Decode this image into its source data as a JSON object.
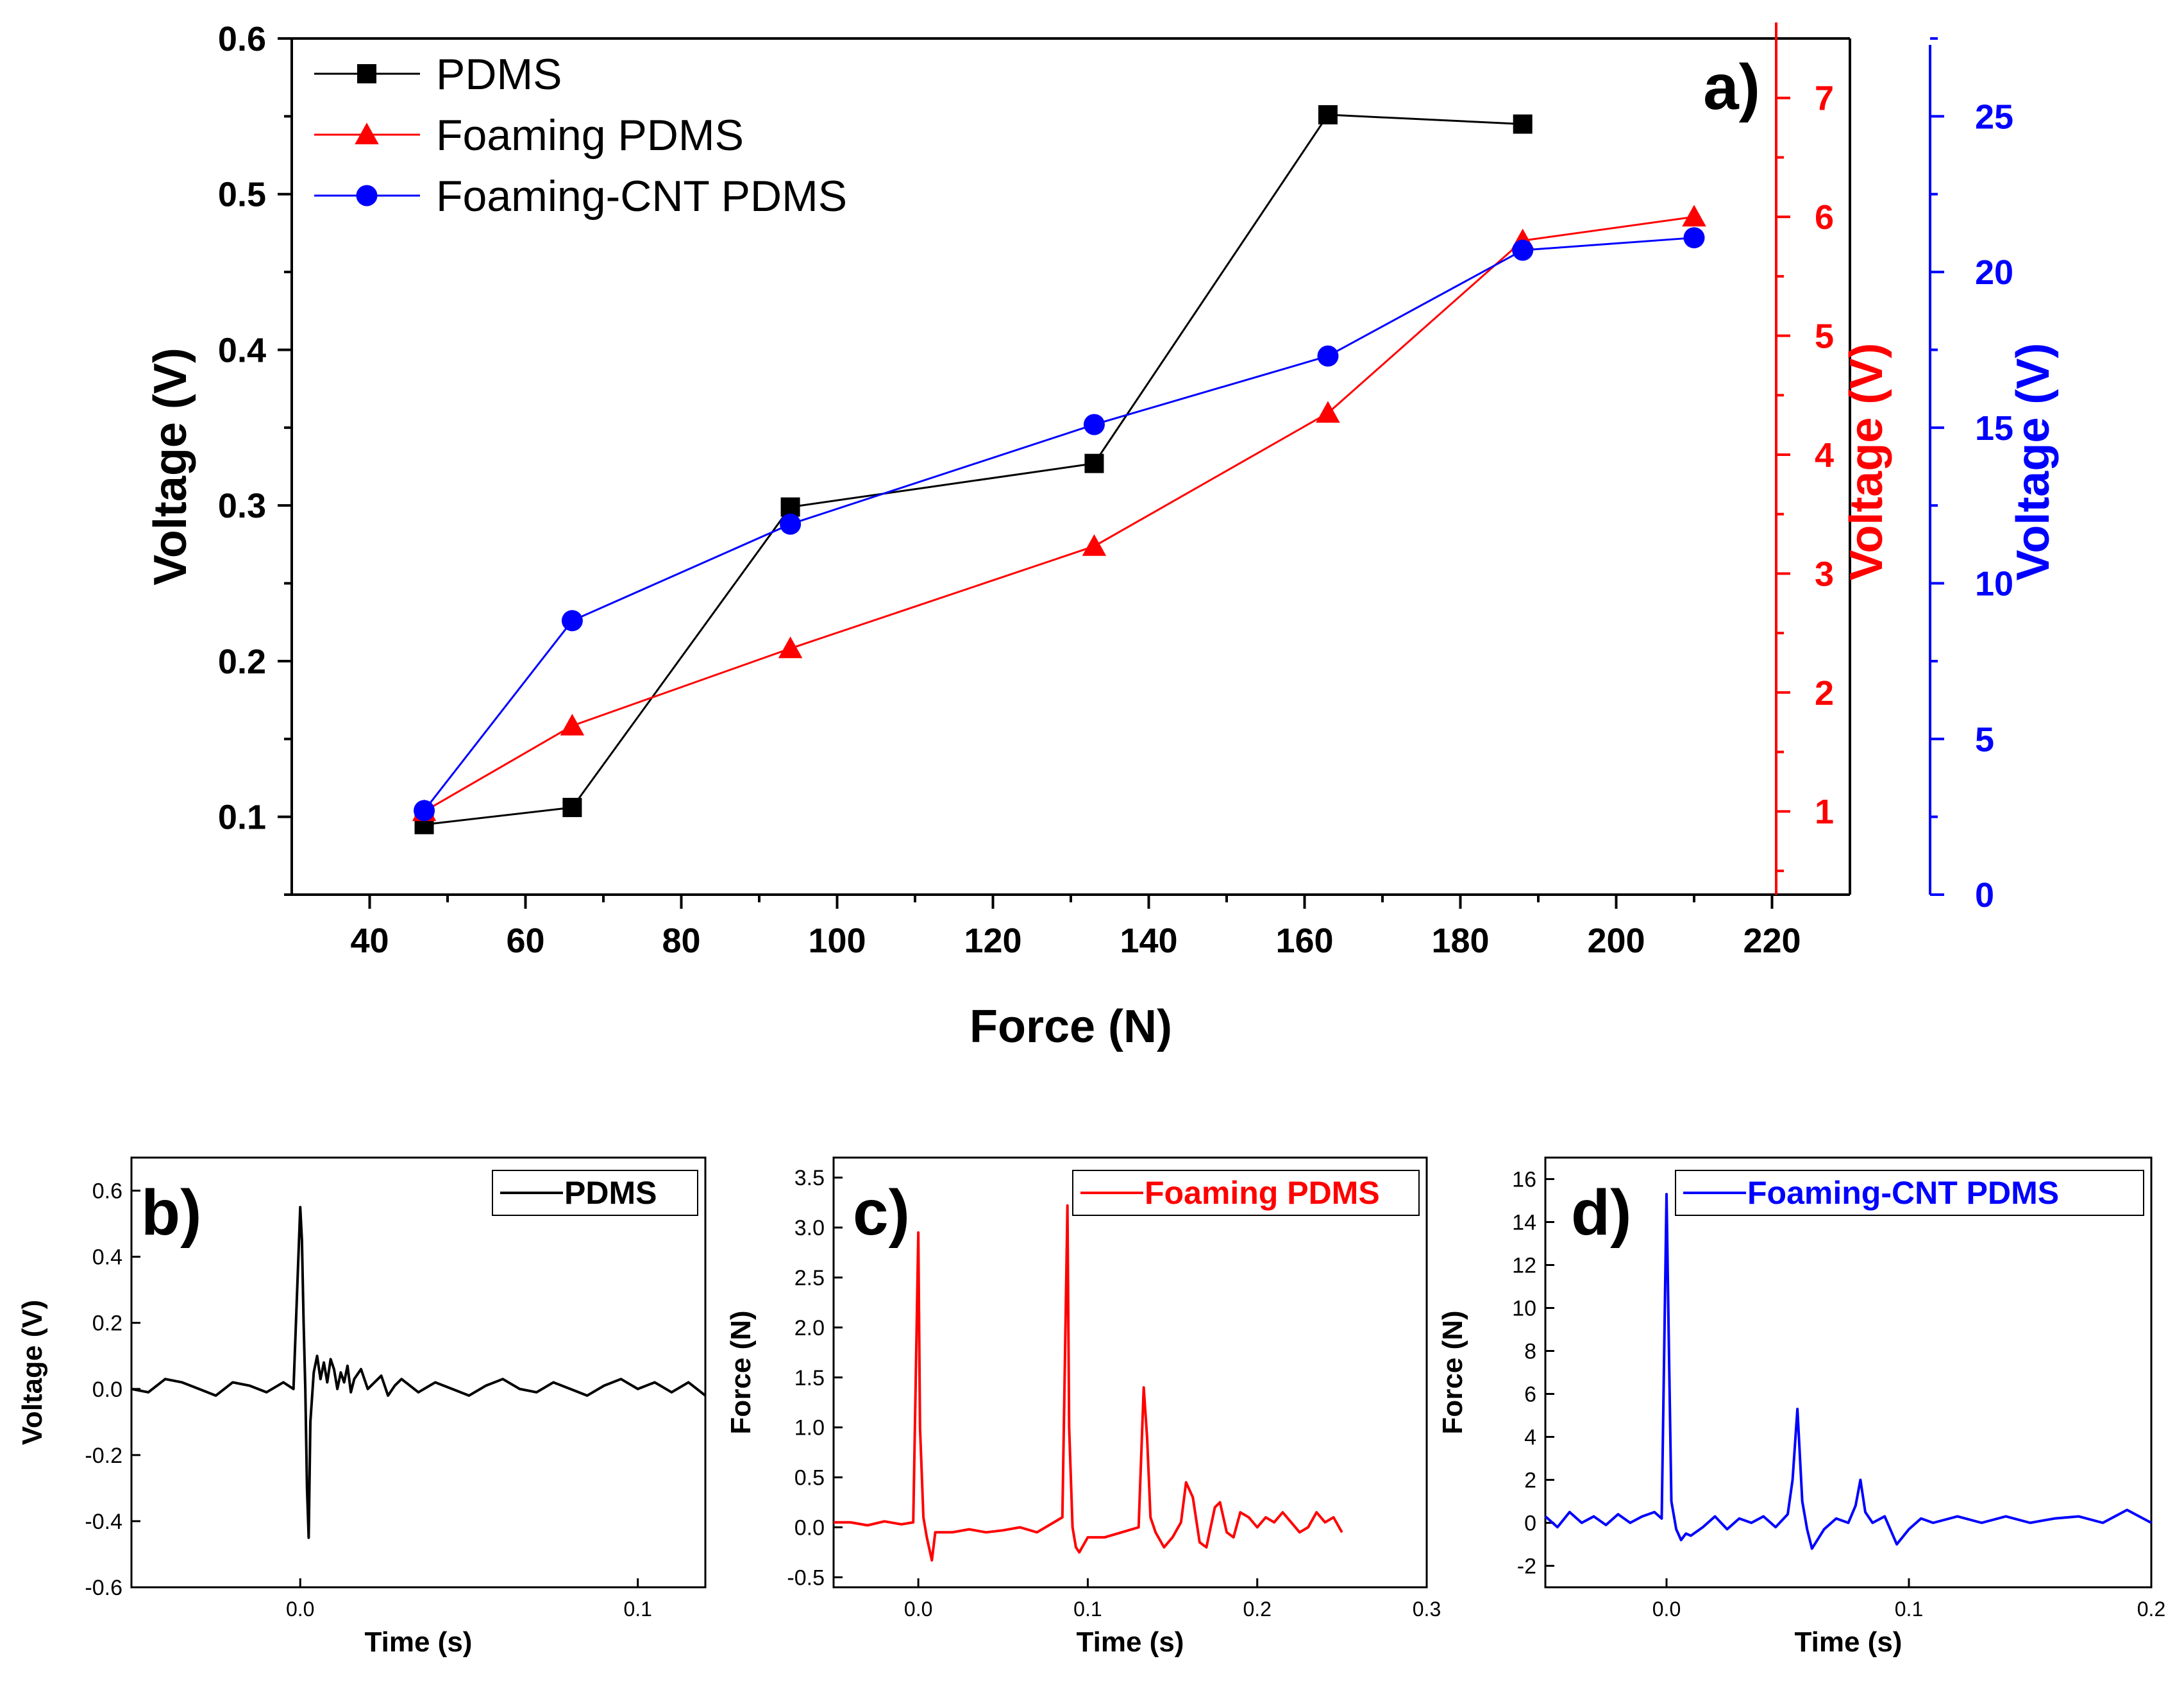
{
  "colors": {
    "pdms": "#000000",
    "foaming": "#ff0000",
    "cnt": "#0000ff",
    "axis": "#000000"
  },
  "chart_data": [
    {
      "panel": "a)",
      "type": "line",
      "xlabel": "Force (N)",
      "xlim": [
        30,
        230
      ],
      "xticks": [
        40,
        60,
        80,
        100,
        120,
        140,
        160,
        180,
        200,
        220
      ],
      "axes": {
        "left": {
          "label": "Voltage (V)",
          "lim": [
            0.05,
            0.6
          ],
          "ticks": [
            0.1,
            0.2,
            0.3,
            0.4,
            0.5,
            0.6
          ],
          "tick_labels": [
            "0.1",
            "0.2",
            "0.3",
            "0.4",
            "0.5",
            "0.6"
          ],
          "color": "#000000"
        },
        "right1": {
          "label": "Voltage (V)",
          "lim": [
            0.3,
            7.5
          ],
          "ticks": [
            1,
            2,
            3,
            4,
            5,
            6,
            7
          ],
          "tick_labels": [
            "1",
            "2",
            "3",
            "4",
            "5",
            "6",
            "7"
          ],
          "color": "#ff0000"
        },
        "right2": {
          "label": "Voltage (V)",
          "lim": [
            0,
            27.5
          ],
          "ticks": [
            0,
            5,
            10,
            15,
            20,
            25
          ],
          "tick_labels": [
            "0",
            "5",
            "10",
            "15",
            "20",
            "25"
          ],
          "color": "#0000ff"
        }
      },
      "legend": {
        "position": "top-left"
      },
      "series": [
        {
          "name": "PDMS",
          "axis": "left",
          "marker": "square",
          "color": "#000000",
          "x": [
            47,
            66,
            94,
            133,
            163,
            188
          ],
          "y": [
            0.095,
            0.106,
            0.299,
            0.327,
            0.551,
            0.545
          ]
        },
        {
          "name": "Foaming PDMS",
          "axis": "right1",
          "marker": "triangle",
          "color": "#ff0000",
          "x": [
            47,
            66,
            94,
            133,
            163,
            188,
            210
          ],
          "y": [
            1.0,
            1.72,
            2.37,
            3.23,
            4.35,
            5.8,
            6.0
          ]
        },
        {
          "name": "Foaming-CNT PDMS",
          "axis": "right2",
          "marker": "circle",
          "color": "#0000ff",
          "x": [
            47,
            66,
            94,
            133,
            163,
            188,
            210
          ],
          "y": [
            2.7,
            8.8,
            11.9,
            15.1,
            17.3,
            20.7,
            21.1
          ]
        }
      ]
    },
    {
      "panel": "b)",
      "type": "line",
      "xlabel": "Time (s)",
      "ylabel": "Voltage (V)",
      "xlim": [
        -0.05,
        0.12
      ],
      "ylim": [
        -0.6,
        0.7
      ],
      "xticks": [
        0.0,
        0.1
      ],
      "xtick_labels": [
        "0.0",
        "0.1"
      ],
      "yticks": [
        -0.6,
        -0.4,
        -0.2,
        0.0,
        0.2,
        0.4,
        0.6
      ],
      "ytick_labels": [
        "-0.6",
        "-0.4",
        "-0.2",
        "0.0",
        "0.2",
        "0.4",
        "0.6"
      ],
      "legend": {
        "position": "top-right",
        "label": "PDMS"
      },
      "color": "#000000",
      "series": [
        {
          "name": "PDMS",
          "x": [
            -0.05,
            -0.045,
            -0.04,
            -0.035,
            -0.03,
            -0.025,
            -0.02,
            -0.015,
            -0.01,
            -0.005,
            -0.002,
            0.0,
            0.0005,
            0.001,
            0.0015,
            0.002,
            0.0025,
            0.003,
            0.004,
            0.005,
            0.006,
            0.007,
            0.008,
            0.009,
            0.01,
            0.011,
            0.012,
            0.013,
            0.014,
            0.015,
            0.016,
            0.018,
            0.02,
            0.022,
            0.024,
            0.026,
            0.028,
            0.03,
            0.035,
            0.04,
            0.045,
            0.05,
            0.055,
            0.06,
            0.065,
            0.07,
            0.075,
            0.08,
            0.085,
            0.09,
            0.095,
            0.1,
            0.105,
            0.11,
            0.115,
            0.12
          ],
          "y": [
            0.0,
            -0.01,
            0.03,
            0.02,
            0.0,
            -0.02,
            0.02,
            0.01,
            -0.01,
            0.02,
            0.0,
            0.55,
            0.45,
            0.2,
            0.0,
            -0.3,
            -0.45,
            -0.1,
            0.05,
            0.1,
            0.03,
            0.08,
            0.02,
            0.09,
            0.06,
            0.0,
            0.05,
            0.02,
            0.07,
            -0.01,
            0.03,
            0.06,
            0.0,
            0.02,
            0.04,
            -0.02,
            0.01,
            0.03,
            -0.01,
            0.02,
            0.0,
            -0.02,
            0.01,
            0.03,
            0.0,
            -0.01,
            0.02,
            0.0,
            -0.02,
            0.01,
            0.03,
            0.0,
            0.02,
            -0.01,
            0.02,
            -0.02
          ]
        }
      ]
    },
    {
      "panel": "c)",
      "type": "line",
      "xlabel": "Time (s)",
      "ylabel": "Force (N)",
      "xlim": [
        -0.05,
        0.3
      ],
      "ylim": [
        -0.6,
        3.7
      ],
      "xticks": [
        0.0,
        0.1,
        0.2,
        0.3
      ],
      "xtick_labels": [
        "0.0",
        "0.1",
        "0.2",
        "0.3"
      ],
      "yticks": [
        -0.5,
        0.0,
        0.5,
        1.0,
        1.5,
        2.0,
        2.5,
        3.0,
        3.5
      ],
      "ytick_labels": [
        "-0.5",
        "0.0",
        "0.5",
        "1.0",
        "1.5",
        "2.0",
        "2.5",
        "3.0",
        "3.5"
      ],
      "legend": {
        "position": "top-right",
        "label": "Foaming PDMS"
      },
      "color": "#ff0000",
      "series": [
        {
          "name": "Foaming PDMS",
          "x": [
            -0.05,
            -0.04,
            -0.03,
            -0.02,
            -0.01,
            -0.003,
            0.0,
            0.001,
            0.003,
            0.005,
            0.008,
            0.01,
            0.02,
            0.03,
            0.04,
            0.05,
            0.06,
            0.07,
            0.08,
            0.085,
            0.088,
            0.089,
            0.091,
            0.093,
            0.095,
            0.1,
            0.11,
            0.12,
            0.13,
            0.133,
            0.135,
            0.137,
            0.14,
            0.145,
            0.15,
            0.155,
            0.158,
            0.162,
            0.166,
            0.17,
            0.175,
            0.178,
            0.182,
            0.186,
            0.19,
            0.195,
            0.2,
            0.205,
            0.21,
            0.215,
            0.22,
            0.225,
            0.23,
            0.235,
            0.24,
            0.245,
            0.25
          ],
          "y": [
            0.05,
            0.05,
            0.02,
            0.06,
            0.03,
            0.05,
            2.95,
            1.0,
            0.1,
            -0.1,
            -0.33,
            -0.05,
            -0.05,
            -0.02,
            -0.05,
            -0.03,
            0.0,
            -0.05,
            0.05,
            0.1,
            3.22,
            1.0,
            0.0,
            -0.2,
            -0.25,
            -0.1,
            -0.1,
            -0.05,
            0.0,
            1.4,
            0.9,
            0.1,
            -0.05,
            -0.2,
            -0.1,
            0.05,
            0.45,
            0.3,
            -0.15,
            -0.2,
            0.2,
            0.25,
            -0.05,
            -0.1,
            0.15,
            0.1,
            0.0,
            0.1,
            0.05,
            0.15,
            0.05,
            -0.05,
            0.0,
            0.15,
            0.05,
            0.1,
            -0.05
          ]
        }
      ]
    },
    {
      "panel": "d)",
      "type": "line",
      "xlabel": "Time (s)",
      "ylabel": "Force (N)",
      "xlim": [
        -0.05,
        0.2
      ],
      "ylim": [
        -3.0,
        17.0
      ],
      "xticks": [
        0.0,
        0.1,
        0.2
      ],
      "xtick_labels": [
        "0.0",
        "0.1",
        "0.2"
      ],
      "yticks": [
        -2,
        0,
        2,
        4,
        6,
        8,
        10,
        12,
        14,
        16
      ],
      "ytick_labels": [
        "-2",
        "0",
        "2",
        "4",
        "6",
        "8",
        "10",
        "12",
        "14",
        "16"
      ],
      "legend": {
        "position": "top-right",
        "label": "Foaming-CNT PDMS"
      },
      "color": "#0000ff",
      "series": [
        {
          "name": "Foaming-CNT PDMS",
          "x": [
            -0.05,
            -0.045,
            -0.04,
            -0.035,
            -0.03,
            -0.025,
            -0.02,
            -0.015,
            -0.01,
            -0.005,
            -0.002,
            0.0,
            0.001,
            0.002,
            0.004,
            0.006,
            0.008,
            0.01,
            0.015,
            0.02,
            0.025,
            0.03,
            0.035,
            0.04,
            0.045,
            0.05,
            0.052,
            0.054,
            0.056,
            0.058,
            0.06,
            0.065,
            0.07,
            0.075,
            0.078,
            0.08,
            0.082,
            0.085,
            0.09,
            0.095,
            0.1,
            0.105,
            0.11,
            0.12,
            0.13,
            0.14,
            0.15,
            0.16,
            0.17,
            0.18,
            0.19,
            0.2
          ],
          "y": [
            0.3,
            -0.2,
            0.5,
            0.0,
            0.3,
            -0.1,
            0.4,
            0.0,
            0.3,
            0.5,
            0.2,
            15.3,
            8.0,
            1.0,
            -0.3,
            -0.8,
            -0.5,
            -0.6,
            -0.2,
            0.3,
            -0.3,
            0.2,
            0.0,
            0.3,
            -0.2,
            0.4,
            2.0,
            5.3,
            1.0,
            -0.3,
            -1.2,
            -0.3,
            0.2,
            0.0,
            0.8,
            2.0,
            0.5,
            0.0,
            0.3,
            -1.0,
            -0.3,
            0.2,
            0.0,
            0.3,
            0.0,
            0.3,
            0.0,
            0.2,
            0.3,
            0.0,
            0.6,
            0.0
          ]
        }
      ]
    }
  ]
}
